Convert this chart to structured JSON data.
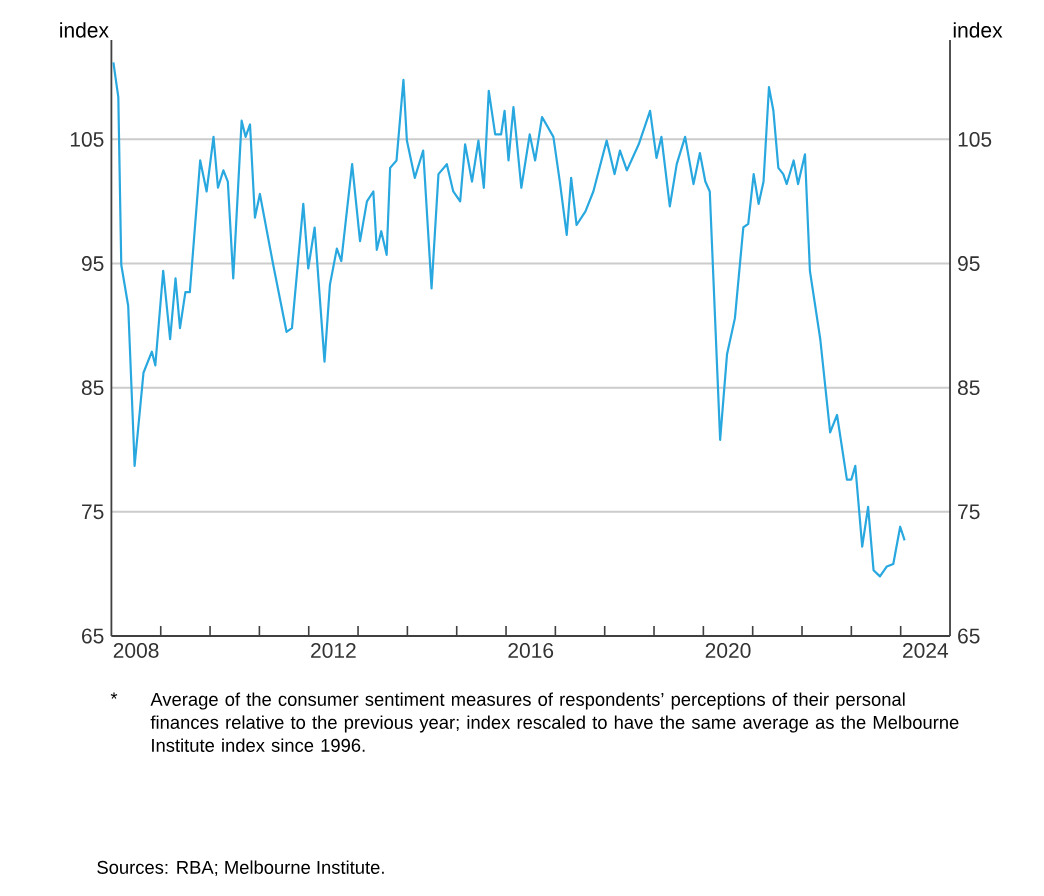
{
  "chart_data": {
    "type": "line",
    "x": [
      2008.04,
      2008.14,
      2008.2,
      2008.34,
      2008.45,
      2008.47,
      2008.65,
      2008.82,
      2008.89,
      2009.05,
      2009.19,
      2009.3,
      2009.39,
      2009.5,
      2009.59,
      2009.8,
      2009.93,
      2010.07,
      2010.16,
      2010.27,
      2010.36,
      2010.47,
      2010.64,
      2010.72,
      2010.81,
      2010.91,
      2011.01,
      2011.28,
      2011.55,
      2011.66,
      2011.89,
      2011.99,
      2012.12,
      2012.32,
      2012.43,
      2012.57,
      2012.66,
      2012.88,
      2013.04,
      2013.18,
      2013.31,
      2013.38,
      2013.47,
      2013.58,
      2013.65,
      2013.78,
      2013.92,
      2013.99,
      2014.15,
      2014.32,
      2014.49,
      2014.63,
      2014.8,
      2014.93,
      2015.07,
      2015.17,
      2015.31,
      2015.44,
      2015.55,
      2015.65,
      2015.78,
      2015.9,
      2015.97,
      2016.05,
      2016.15,
      2016.31,
      2016.48,
      2016.59,
      2016.73,
      2016.96,
      2017.09,
      2017.23,
      2017.32,
      2017.43,
      2017.61,
      2017.77,
      2018.04,
      2018.2,
      2018.31,
      2018.45,
      2018.69,
      2018.92,
      2019.05,
      2019.15,
      2019.32,
      2019.46,
      2019.63,
      2019.8,
      2019.93,
      2020.04,
      2020.13,
      2020.34,
      2020.48,
      2020.64,
      2020.81,
      2020.91,
      2021.02,
      2021.12,
      2021.22,
      2021.33,
      2021.42,
      2021.52,
      2021.62,
      2021.69,
      2021.83,
      2021.92,
      2022.06,
      2022.16,
      2022.37,
      2022.57,
      2022.71,
      2022.91,
      2023.0,
      2023.08,
      2023.22,
      2023.34,
      2023.45,
      2023.58,
      2023.72,
      2023.85,
      2023.99,
      2024.08
    ],
    "series": [
      {
        "color": "#29a8e0",
        "values": [
          111.2,
          108.4,
          94.9,
          91.6,
          80.8,
          78.7,
          86.2,
          87.9,
          86.8,
          94.4,
          88.9,
          93.8,
          89.8,
          92.7,
          92.7,
          103.3,
          100.8,
          105.2,
          101.1,
          102.5,
          101.6,
          93.8,
          106.5,
          105.2,
          106.2,
          98.7,
          100.6,
          94.9,
          89.5,
          89.8,
          99.8,
          94.6,
          97.9,
          87.1,
          93.3,
          96.2,
          95.2,
          103.0,
          96.8,
          100.0,
          100.8,
          96.1,
          97.6,
          95.7,
          102.7,
          103.3,
          109.8,
          104.9,
          101.9,
          104.1,
          93.0,
          102.2,
          103.0,
          100.8,
          100.0,
          104.6,
          101.6,
          104.9,
          101.1,
          108.9,
          105.4,
          105.4,
          107.3,
          103.3,
          107.6,
          101.1,
          105.4,
          103.3,
          106.8,
          105.2,
          101.6,
          97.3,
          101.9,
          98.1,
          99.2,
          100.8,
          104.9,
          102.2,
          104.1,
          102.5,
          104.6,
          107.3,
          103.5,
          105.2,
          99.6,
          103.0,
          105.2,
          101.4,
          103.9,
          101.6,
          100.8,
          80.8,
          87.7,
          90.6,
          97.9,
          98.2,
          102.2,
          99.8,
          101.6,
          109.2,
          107.3,
          102.7,
          102.2,
          101.4,
          103.3,
          101.4,
          103.8,
          94.4,
          88.9,
          81.4,
          82.8,
          77.6,
          77.6,
          78.7,
          72.2,
          75.4,
          70.3,
          69.8,
          70.6,
          70.8,
          73.8,
          72.7
        ]
      }
    ],
    "ylabel": "index",
    "y2label": "index",
    "xlim": [
      2008,
      2025
    ],
    "xticks": [
      {
        "value": 2008.5,
        "label": "2008"
      },
      {
        "value": 2009,
        "label": null
      },
      {
        "value": 2010,
        "label": null
      },
      {
        "value": 2011,
        "label": null
      },
      {
        "value": 2012,
        "label": null
      },
      {
        "value": 2012.5,
        "label": "2012"
      },
      {
        "value": 2013,
        "label": null
      },
      {
        "value": 2014,
        "label": null
      },
      {
        "value": 2015,
        "label": null
      },
      {
        "value": 2016,
        "label": null
      },
      {
        "value": 2016.5,
        "label": "2016"
      },
      {
        "value": 2017,
        "label": null
      },
      {
        "value": 2018,
        "label": null
      },
      {
        "value": 2019,
        "label": null
      },
      {
        "value": 2020,
        "label": null
      },
      {
        "value": 2020.5,
        "label": "2020"
      },
      {
        "value": 2021,
        "label": null
      },
      {
        "value": 2022,
        "label": null
      },
      {
        "value": 2023,
        "label": null
      },
      {
        "value": 2024,
        "label": null
      },
      {
        "value": 2024.5,
        "label": "2024"
      }
    ],
    "ylim": [
      65,
      113
    ],
    "yticks": [
      65,
      75,
      85,
      95,
      105
    ],
    "y2lim": [
      65,
      113
    ],
    "y2ticks": [
      65,
      75,
      85,
      95,
      105
    ],
    "grid": "y",
    "legend": false,
    "marker": "none",
    "line_style": "solid",
    "annotations": [
      "*",
      "Average of the consumer sentiment measures of respondents’ perceptions of their personal finances relative to the previous year; index rescaled to have the same average as the Melbourne Institute index since 1996.",
      "Sources: RBA; Melbourne Institute."
    ]
  }
}
